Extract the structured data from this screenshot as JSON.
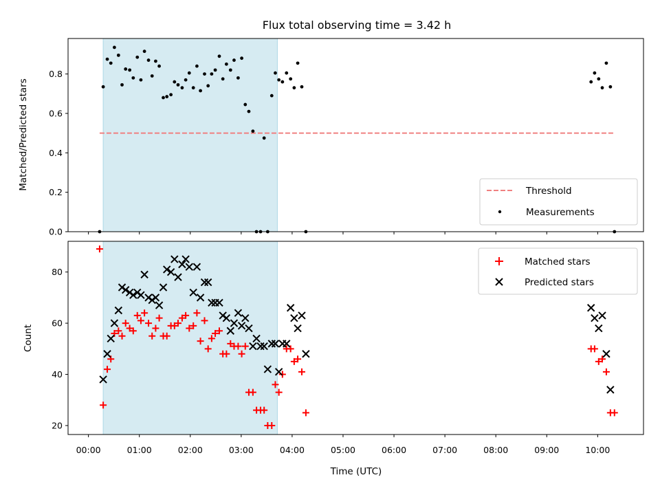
{
  "chart_data": [
    {
      "type": "scatter",
      "title": "Flux total observing time = 3.42 h",
      "xlabel": "",
      "ylabel": "Matched/Predicted stars",
      "xlim": [
        -0.4,
        10.9
      ],
      "ylim": [
        0.0,
        0.98
      ],
      "yticks": [
        0.0,
        0.2,
        0.4,
        0.6,
        0.8
      ],
      "ytick_labels": [
        "0.0",
        "0.2",
        "0.4",
        "0.6",
        "0.8"
      ],
      "shaded_span": {
        "x_start": 0.29,
        "x_end": 3.71,
        "color": "#add8e6"
      },
      "threshold": {
        "name": "Threshold",
        "y": 0.5,
        "x_start": 0.22,
        "x_end": 10.33,
        "color": "#f08080",
        "style": "dashed"
      },
      "legend": {
        "placement": "lower-right",
        "entries": [
          "Threshold",
          "Measurements"
        ]
      },
      "series": [
        {
          "name": "Measurements",
          "color": "#000000",
          "marker": "dot",
          "x": [
            0.22,
            0.29,
            0.37,
            0.44,
            0.51,
            0.59,
            0.66,
            0.73,
            0.81,
            0.88,
            0.96,
            1.03,
            1.1,
            1.18,
            1.25,
            1.32,
            1.39,
            1.47,
            1.54,
            1.62,
            1.69,
            1.76,
            1.84,
            1.91,
            1.98,
            2.06,
            2.13,
            2.2,
            2.28,
            2.35,
            2.42,
            2.49,
            2.57,
            2.64,
            2.71,
            2.79,
            2.86,
            2.94,
            3.01,
            3.08,
            3.15,
            3.23,
            3.3,
            3.38,
            3.45,
            3.52,
            3.6,
            3.67,
            3.74,
            3.81,
            3.89,
            3.97,
            4.04,
            4.11,
            4.19,
            4.27,
            9.87,
            9.94,
            10.02,
            10.09,
            10.17,
            10.25,
            10.33
          ],
          "y": [
            0.0,
            0.735,
            0.875,
            0.855,
            0.935,
            0.895,
            0.745,
            0.825,
            0.82,
            0.78,
            0.885,
            0.77,
            0.915,
            0.87,
            0.79,
            0.865,
            0.84,
            0.68,
            0.685,
            0.695,
            0.76,
            0.745,
            0.73,
            0.77,
            0.805,
            0.73,
            0.84,
            0.715,
            0.8,
            0.74,
            0.8,
            0.82,
            0.89,
            0.775,
            0.85,
            0.82,
            0.87,
            0.78,
            0.88,
            0.645,
            0.61,
            0.51,
            0.0,
            0.0,
            0.475,
            0.0,
            0.69,
            0.805,
            0.77,
            0.76,
            0.805,
            0.775,
            0.73,
            0.855,
            0.735,
            0.0,
            0.76,
            0.805,
            0.775,
            0.73,
            0.855,
            0.735,
            0.0
          ]
        }
      ]
    },
    {
      "type": "scatter",
      "title": "",
      "xlabel": "Time (UTC)",
      "ylabel": "Count",
      "xlim": [
        -0.4,
        10.9
      ],
      "ylim": [
        16.5,
        92.0
      ],
      "yticks": [
        20,
        40,
        60,
        80
      ],
      "ytick_labels": [
        "20",
        "40",
        "60",
        "80"
      ],
      "xticks": [
        0,
        1,
        2,
        3,
        4,
        5,
        6,
        7,
        8,
        9,
        10
      ],
      "xtick_labels": [
        "00:00",
        "01:00",
        "02:00",
        "03:00",
        "04:00",
        "05:00",
        "06:00",
        "07:00",
        "08:00",
        "09:00",
        "10:00"
      ],
      "shaded_span": {
        "x_start": 0.29,
        "x_end": 3.71,
        "color": "#add8e6"
      },
      "legend": {
        "placement": "upper-right",
        "entries": [
          "Matched stars",
          "Predicted stars"
        ]
      },
      "series": [
        {
          "name": "Matched stars",
          "color": "#ff0000",
          "marker": "plus",
          "x": [
            0.22,
            0.29,
            0.37,
            0.44,
            0.51,
            0.59,
            0.66,
            0.73,
            0.81,
            0.88,
            0.96,
            1.03,
            1.1,
            1.18,
            1.25,
            1.32,
            1.39,
            1.47,
            1.54,
            1.62,
            1.69,
            1.76,
            1.84,
            1.91,
            1.98,
            2.06,
            2.13,
            2.2,
            2.28,
            2.35,
            2.42,
            2.49,
            2.57,
            2.64,
            2.71,
            2.79,
            2.86,
            2.94,
            3.01,
            3.08,
            3.15,
            3.23,
            3.3,
            3.38,
            3.45,
            3.52,
            3.6,
            3.67,
            3.74,
            3.81,
            3.89,
            3.97,
            4.04,
            4.11,
            4.19,
            4.27,
            9.87,
            9.94,
            10.02,
            10.09,
            10.17,
            10.25,
            10.33
          ],
          "y": [
            89,
            28,
            42,
            46,
            56,
            57,
            55,
            60,
            58,
            57,
            63,
            61,
            64,
            60,
            55,
            58,
            62,
            55,
            55,
            59,
            59,
            60,
            62,
            63,
            58,
            59,
            64,
            53,
            61,
            50,
            54,
            56,
            57,
            48,
            48,
            52,
            51,
            51,
            48,
            51,
            33,
            33,
            26,
            26,
            26,
            20,
            20,
            36,
            33,
            40,
            50,
            50,
            45,
            46,
            41,
            25,
            50,
            50,
            45,
            46,
            41,
            25,
            25
          ]
        },
        {
          "name": "Predicted stars",
          "color": "#000000",
          "marker": "x",
          "x": [
            0.29,
            0.37,
            0.44,
            0.51,
            0.59,
            0.66,
            0.73,
            0.81,
            0.88,
            0.96,
            1.03,
            1.1,
            1.18,
            1.25,
            1.32,
            1.39,
            1.47,
            1.54,
            1.62,
            1.69,
            1.76,
            1.84,
            1.91,
            1.98,
            2.06,
            2.13,
            2.2,
            2.28,
            2.35,
            2.42,
            2.49,
            2.57,
            2.64,
            2.71,
            2.79,
            2.86,
            2.94,
            3.01,
            3.08,
            3.15,
            3.23,
            3.3,
            3.38,
            3.45,
            3.52,
            3.6,
            3.67,
            3.74,
            3.81,
            3.89,
            3.97,
            4.04,
            4.11,
            4.19,
            4.27,
            9.87,
            9.94,
            10.02,
            10.09,
            10.17,
            10.25
          ],
          "y": [
            38,
            48,
            54,
            60,
            65,
            74,
            73,
            72,
            71,
            72,
            71,
            79,
            70,
            69,
            70,
            67,
            74,
            81,
            80,
            85,
            78,
            83,
            85,
            82,
            72,
            82,
            70,
            76,
            76,
            68,
            68,
            68,
            63,
            62,
            57,
            60,
            64,
            59,
            62,
            58,
            51,
            54,
            51,
            51,
            42,
            52,
            52,
            41,
            52,
            52,
            66,
            62,
            58,
            63,
            48,
            66,
            62,
            58,
            63,
            48,
            34
          ]
        }
      ]
    }
  ]
}
